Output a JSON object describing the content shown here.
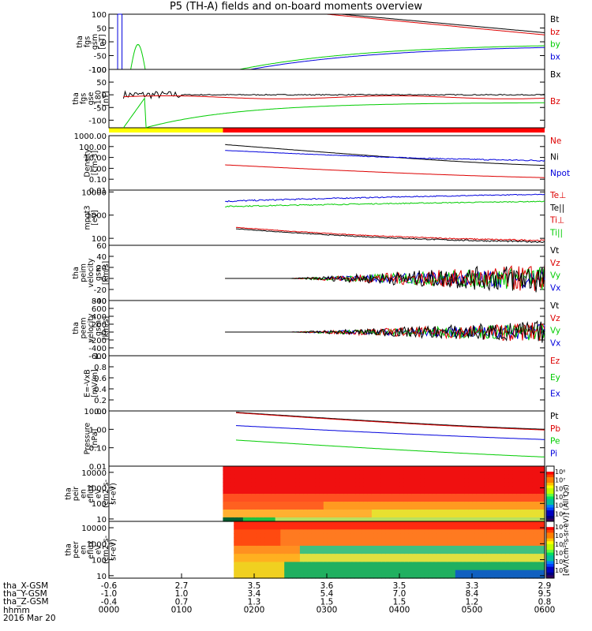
{
  "title": "P5 (TH-A) fields and on-board moments overview",
  "chart_data": {
    "type": "line",
    "panels": [
      {
        "id": "fgs-gsm",
        "ylabel_lines": [
          "tha",
          "fgs",
          "gsm",
          "[nT]"
        ],
        "ylim": [
          -100,
          100
        ],
        "yticks": [
          "100",
          "50",
          "0",
          "-50",
          "-100"
        ],
        "legend": [
          {
            "name": "Bt",
            "color": "#000000"
          },
          {
            "name": "bz",
            "color": "#dd0000"
          },
          {
            "name": "by",
            "color": "#00cc00"
          },
          {
            "name": "bx",
            "color": "#0000dd"
          }
        ]
      },
      {
        "id": "fgs-gse-180",
        "ylabel_lines": [
          "tha",
          "fgs",
          "gse",
          "-180",
          "[nT]"
        ],
        "ylim": [
          -130,
          100
        ],
        "yticks": [
          "100",
          "50",
          "0",
          "-50",
          "-100"
        ],
        "legend": [
          {
            "name": "Bx",
            "color": "#000000"
          },
          {
            "name": "Bz",
            "color": "#dd0000"
          }
        ]
      },
      {
        "id": "density",
        "ylabel_lines": [
          "Density",
          "[cm-3]"
        ],
        "yscale": "log",
        "ylim": [
          0.01,
          1000
        ],
        "yticks": [
          "1000.00",
          "100.00",
          "10.00",
          "1.00",
          "0.10",
          "0.01"
        ],
        "legend": [
          {
            "name": "Ne",
            "color": "#dd0000"
          },
          {
            "name": "Ni",
            "color": "#000000"
          },
          {
            "name": "Npot",
            "color": "#0000dd"
          }
        ]
      },
      {
        "id": "temperature",
        "ylabel_lines": [
          "mpgt3",
          "[eV]"
        ],
        "yscale": "log",
        "ylim": [
          50,
          12000
        ],
        "yticks": [
          "10000",
          "1000",
          "100"
        ],
        "legend": [
          {
            "name": "Te⊥",
            "color": "#dd0000"
          },
          {
            "name": "Te||",
            "color": "#000000"
          },
          {
            "name": "Ti⊥",
            "color": "#dd0000"
          },
          {
            "name": "Ti||",
            "color": "#00cc00"
          }
        ]
      },
      {
        "id": "peim-velocity",
        "ylabel_lines": [
          "tha",
          "peim",
          "velocity",
          "gsm",
          "[km/s]"
        ],
        "ylim": [
          -40,
          60
        ],
        "yticks": [
          "60",
          "40",
          "20",
          "0",
          "-20",
          "-40"
        ],
        "legend": [
          {
            "name": "Vt",
            "color": "#000000"
          },
          {
            "name": "Vz",
            "color": "#dd0000"
          },
          {
            "name": "Vy",
            "color": "#00cc00"
          },
          {
            "name": "Vx",
            "color": "#0000dd"
          }
        ]
      },
      {
        "id": "peem-velocity",
        "ylabel_lines": [
          "tha",
          "peem",
          "velocity",
          "gsm",
          "[km/s]"
        ],
        "ylim": [
          -600,
          800
        ],
        "yticks": [
          "800",
          "600",
          "400",
          "200",
          "0",
          "-200",
          "-400",
          "-600"
        ],
        "legend": [
          {
            "name": "Vt",
            "color": "#000000"
          },
          {
            "name": "Vz",
            "color": "#dd0000"
          },
          {
            "name": "Vy",
            "color": "#00cc00"
          },
          {
            "name": "Vx",
            "color": "#0000dd"
          }
        ]
      },
      {
        "id": "efield",
        "ylabel_lines": [
          "E=-VxB",
          "[mV/m]"
        ],
        "ylim": [
          0,
          1
        ],
        "yticks": [
          "1.0",
          "0.8",
          "0.6",
          "0.4",
          "0.2",
          "0.0"
        ],
        "legend": [
          {
            "name": "Ez",
            "color": "#dd0000"
          },
          {
            "name": "Ey",
            "color": "#00cc00"
          },
          {
            "name": "Ex",
            "color": "#0000dd"
          }
        ]
      },
      {
        "id": "pressure",
        "ylabel_lines": [
          "Pressure",
          "[nPa]"
        ],
        "yscale": "log",
        "ylim": [
          0.01,
          10
        ],
        "yticks": [
          "10.00",
          "1.00",
          "0.10",
          "0.01"
        ],
        "legend": [
          {
            "name": "Pt",
            "color": "#000000"
          },
          {
            "name": "Pb",
            "color": "#dd0000"
          },
          {
            "name": "Pe",
            "color": "#00cc00"
          },
          {
            "name": "Pi",
            "color": "#0000dd"
          }
        ]
      },
      {
        "id": "peir-eflux",
        "type": "heatmap",
        "ylabel_lines": [
          "tha",
          "peir",
          "en",
          "eflux",
          "eV",
          "(cm2-s-",
          "sr-eV)"
        ],
        "yscale": "log",
        "ylim": [
          7,
          25000
        ],
        "yticks": [
          "10000",
          "1000",
          "100",
          "10"
        ]
      },
      {
        "id": "peer-eflux",
        "type": "heatmap",
        "ylabel_lines": [
          "tha",
          "peer",
          "en",
          "eflux",
          "eV",
          "(cm2-s-",
          "sr-eV)"
        ],
        "yscale": "log",
        "ylim": [
          7,
          25000
        ],
        "yticks": [
          "10000",
          "1000",
          "100",
          "10"
        ]
      }
    ],
    "colorbar": {
      "ticks_top": [
        "10⁸",
        "10⁷",
        "10⁶",
        "10⁵",
        "10⁴",
        "10³"
      ],
      "ticks_bottom": [
        "10⁸",
        "10⁷",
        "10⁶",
        "10⁵",
        "10⁴",
        "10³"
      ],
      "label": "[eV/(cm²-s-sr-eV)] (All Qs)"
    },
    "x_axis": {
      "rows": [
        {
          "label": "tha_X-GSM",
          "values": [
            "-0.6",
            "2.7",
            "3.5",
            "3.6",
            "3.5",
            "3.3",
            "2.9"
          ]
        },
        {
          "label": "tha_Y-GSM",
          "values": [
            "-1.0",
            "1.0",
            "3.4",
            "5.4",
            "7.0",
            "8.4",
            "9.5"
          ]
        },
        {
          "label": "tha_Z-GSM",
          "values": [
            "-0.4",
            "0.7",
            "1.3",
            "1.5",
            "1.5",
            "1.2",
            "0.8"
          ]
        },
        {
          "label": "hhmm",
          "values": [
            "0000",
            "0100",
            "0200",
            "0300",
            "0400",
            "0500",
            "0600"
          ]
        }
      ],
      "date": "2016 Mar 20",
      "xlim_hours": [
        0,
        6
      ]
    },
    "mode_bar": {
      "segments": [
        {
          "from": 0,
          "to": 1.57,
          "color": "#ffff00"
        },
        {
          "from": 1.57,
          "to": 6,
          "color": "#ff0000"
        }
      ]
    }
  }
}
